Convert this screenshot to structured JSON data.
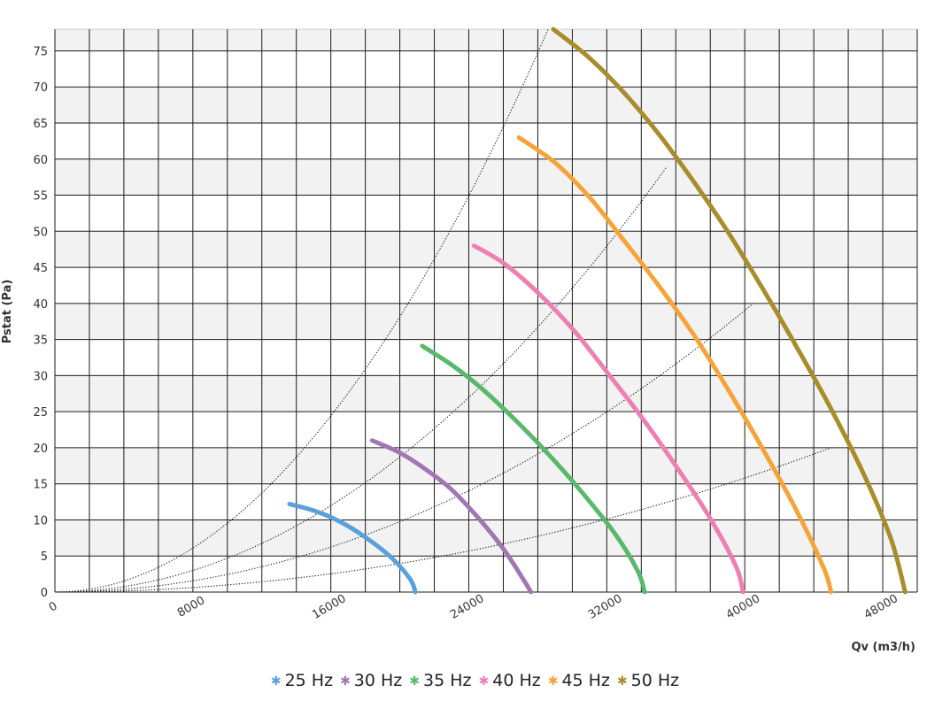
{
  "chart_data": {
    "type": "line",
    "xlabel": "Qv (m3/h)",
    "ylabel": "Pstat (Pa)",
    "xlim": [
      0,
      50000
    ],
    "ylim": [
      0,
      78
    ],
    "x_ticks": [
      0,
      8000,
      16000,
      24000,
      32000,
      40000,
      48000
    ],
    "y_ticks": [
      0,
      5,
      10,
      15,
      20,
      25,
      30,
      35,
      40,
      45,
      50,
      55,
      60,
      65,
      70,
      75
    ],
    "x_gridlines": [
      0,
      2000,
      4000,
      6000,
      8000,
      10000,
      12000,
      14000,
      16000,
      18000,
      20000,
      22000,
      24000,
      26000,
      28000,
      30000,
      32000,
      34000,
      36000,
      38000,
      40000,
      42000,
      44000,
      46000,
      48000,
      50000
    ],
    "y_bands": "alternating white/light-grey every 5 Pa",
    "legend_position": "bottom",
    "series": [
      {
        "name": "25 Hz",
        "color": "#5aa1dc",
        "points": [
          [
            13600,
            12.2
          ],
          [
            15000,
            11.3
          ],
          [
            16500,
            9.8
          ],
          [
            18000,
            7.6
          ],
          [
            19500,
            4.8
          ],
          [
            20600,
            1.8
          ],
          [
            20900,
            0
          ]
        ]
      },
      {
        "name": "30 Hz",
        "color": "#a276b4",
        "points": [
          [
            18400,
            21.0
          ],
          [
            20000,
            19.3
          ],
          [
            21500,
            17.0
          ],
          [
            23000,
            14.2
          ],
          [
            24500,
            10.4
          ],
          [
            26000,
            6.0
          ],
          [
            27200,
            1.6
          ],
          [
            27600,
            0
          ]
        ]
      },
      {
        "name": "35 Hz",
        "color": "#59b869",
        "points": [
          [
            21300,
            34.1
          ],
          [
            23000,
            31.5
          ],
          [
            24700,
            28.3
          ],
          [
            26500,
            24.3
          ],
          [
            28500,
            19.4
          ],
          [
            30500,
            14.0
          ],
          [
            32500,
            8.0
          ],
          [
            33800,
            2.9
          ],
          [
            34200,
            0
          ]
        ]
      },
      {
        "name": "40 Hz",
        "color": "#ee7fb3",
        "points": [
          [
            24300,
            48.0
          ],
          [
            26000,
            45.6
          ],
          [
            28000,
            41.5
          ],
          [
            30000,
            36.5
          ],
          [
            32000,
            30.5
          ],
          [
            34000,
            24.3
          ],
          [
            36000,
            17.5
          ],
          [
            38000,
            10.2
          ],
          [
            39500,
            3.5
          ],
          [
            39900,
            0
          ]
        ]
      },
      {
        "name": "45 Hz",
        "color": "#f6a43a",
        "points": [
          [
            26900,
            63.0
          ],
          [
            29000,
            59.5
          ],
          [
            31000,
            54.7
          ],
          [
            33000,
            48.7
          ],
          [
            35000,
            42.5
          ],
          [
            37000,
            35.8
          ],
          [
            39000,
            28.2
          ],
          [
            41000,
            20.0
          ],
          [
            43000,
            11.3
          ],
          [
            44600,
            3.2
          ],
          [
            45000,
            0
          ]
        ]
      },
      {
        "name": "50 Hz",
        "color": "#a98d2c",
        "points": [
          [
            28900,
            78.0
          ],
          [
            31000,
            74.0
          ],
          [
            33000,
            69.2
          ],
          [
            35000,
            63.5
          ],
          [
            37000,
            57.0
          ],
          [
            39000,
            50.0
          ],
          [
            41000,
            42.2
          ],
          [
            43000,
            34.0
          ],
          [
            45000,
            25.4
          ],
          [
            47000,
            15.8
          ],
          [
            48500,
            7.2
          ],
          [
            49300,
            0
          ]
        ]
      }
    ],
    "system_curves": [
      {
        "style": "dotted",
        "color": "#111111",
        "x_end": 28600,
        "y_end": 78
      },
      {
        "style": "dotted",
        "color": "#111111",
        "x_end": 35500,
        "y_end": 59
      },
      {
        "style": "dotted",
        "color": "#111111",
        "x_end": 40500,
        "y_end": 40
      },
      {
        "style": "dotted",
        "color": "#111111",
        "x_end": 45000,
        "y_end": 20
      }
    ]
  }
}
